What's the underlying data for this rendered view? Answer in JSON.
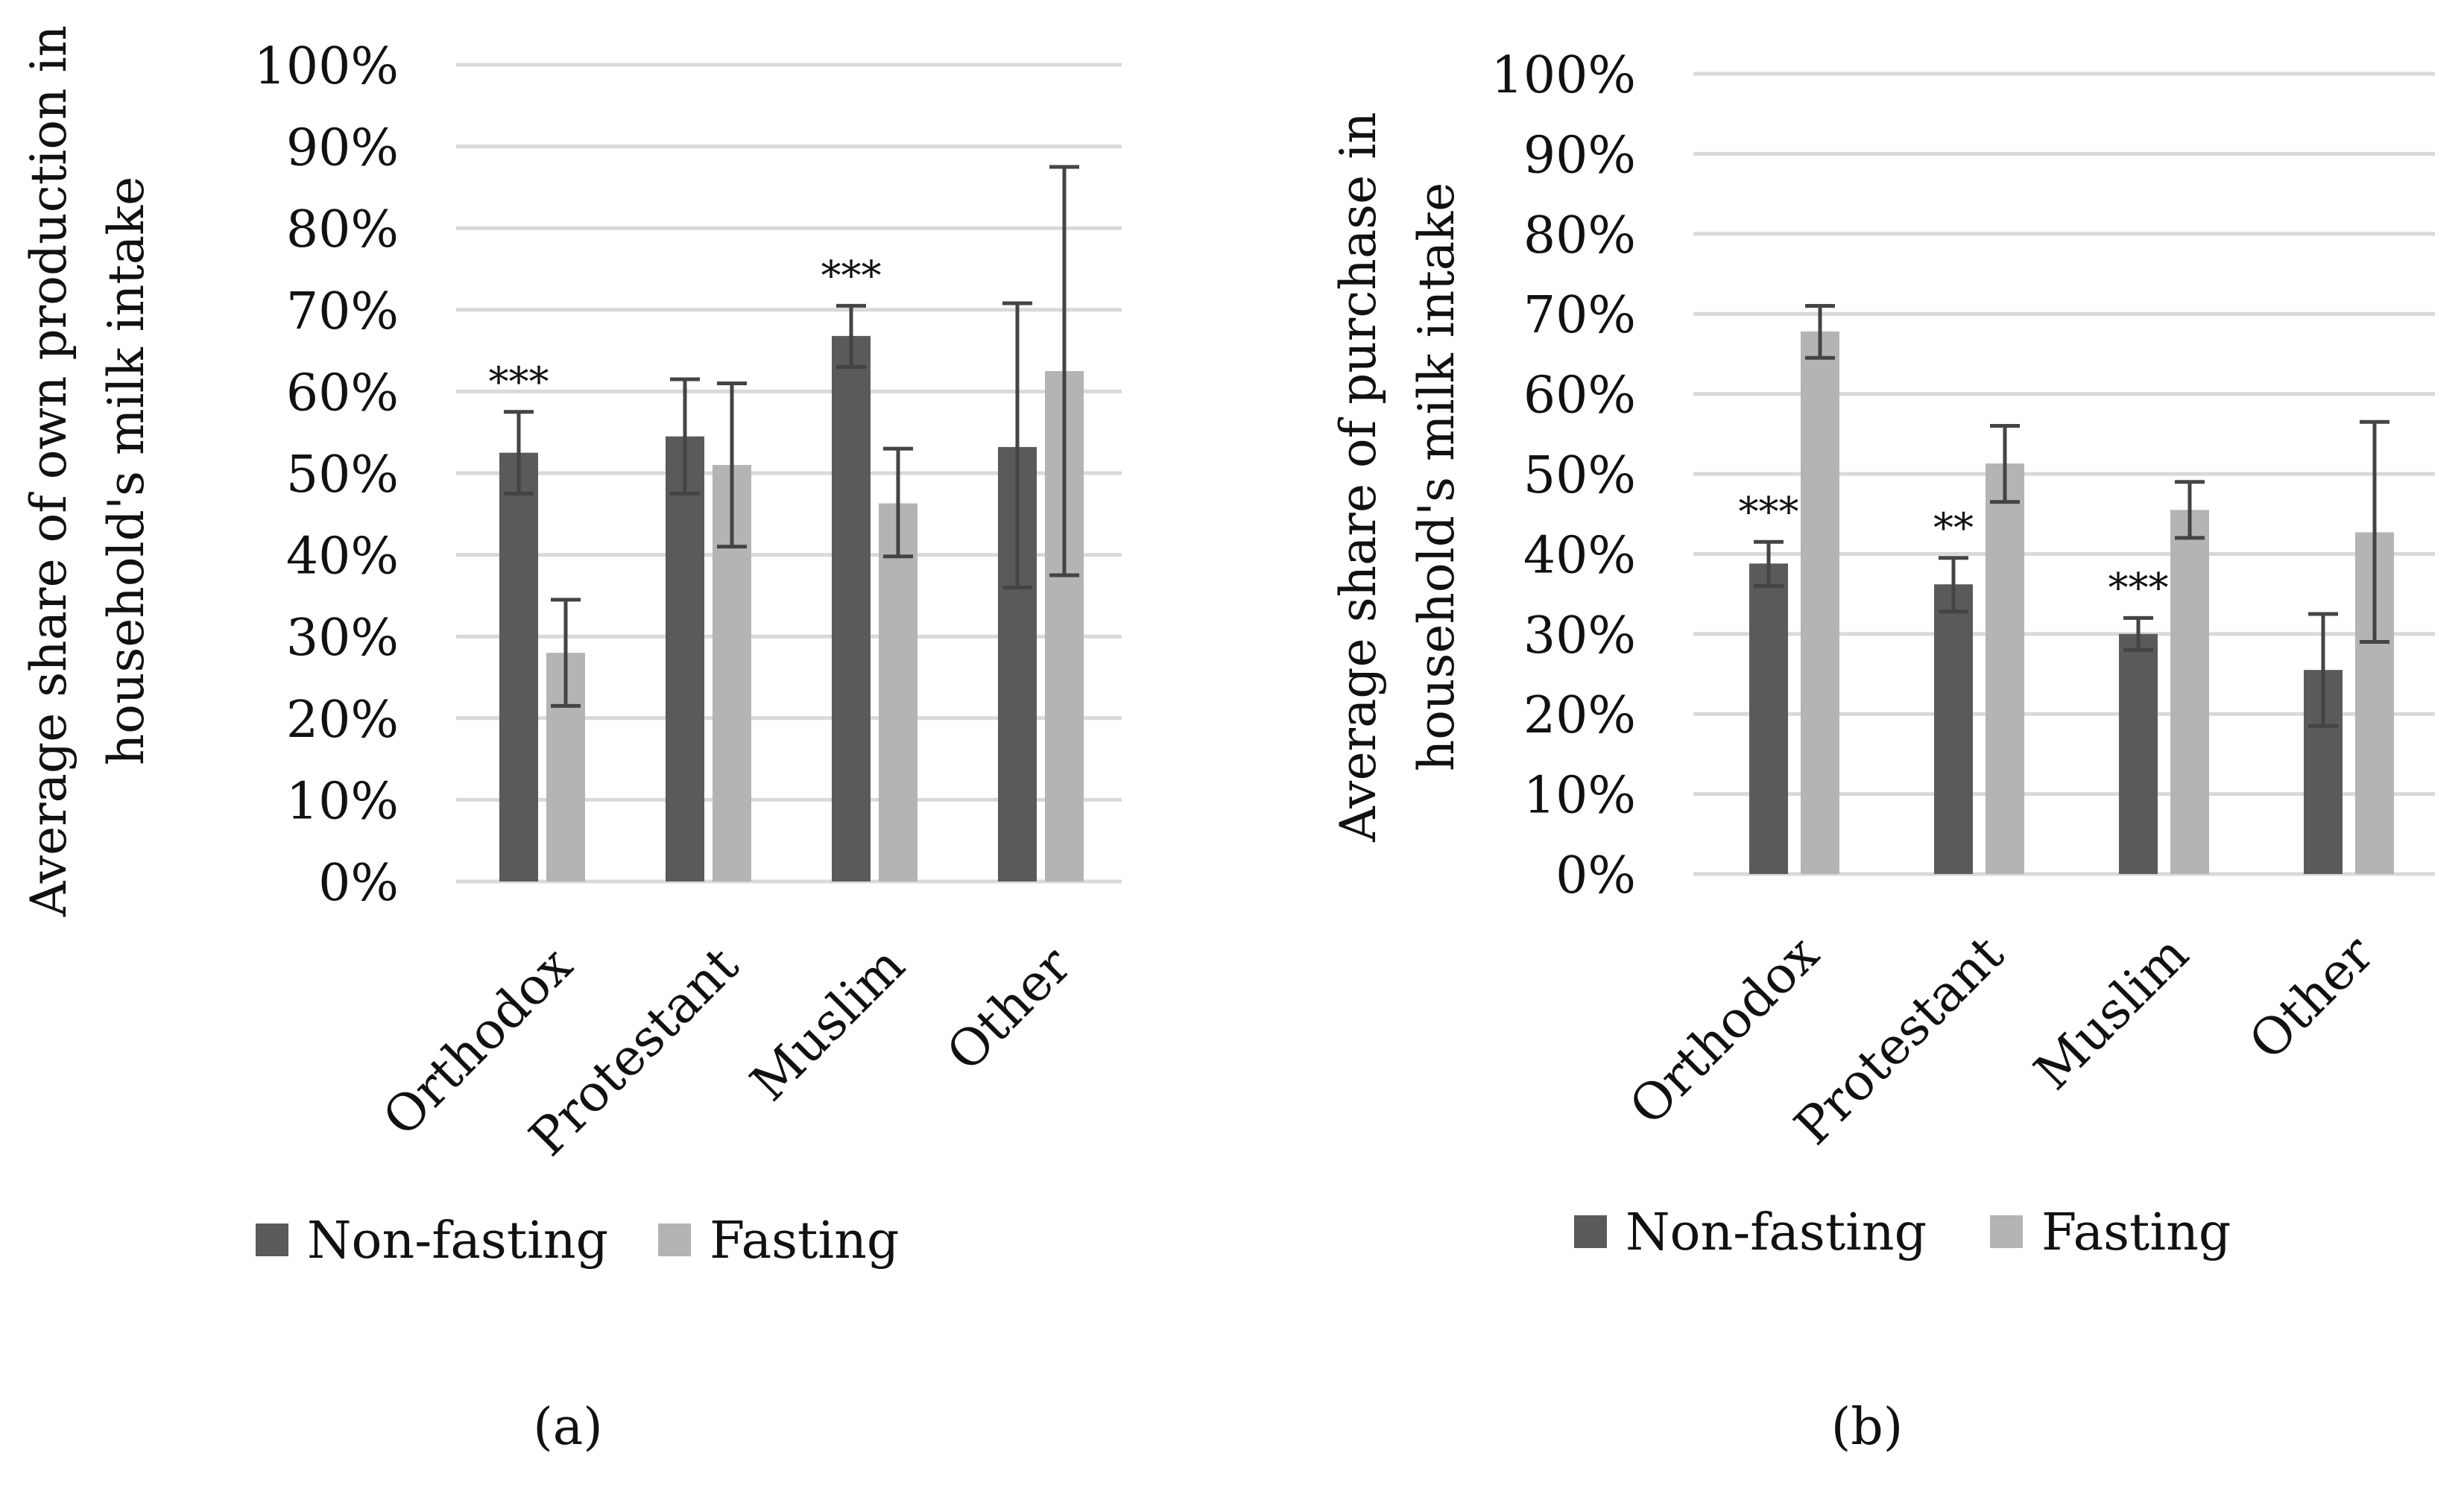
{
  "colors": {
    "non_fasting": "#5a5a5a",
    "fasting": "#b4b4b4",
    "grid": "#d9d9d9",
    "error_bar": "#444444",
    "text": "#111111"
  },
  "chart_data": [
    {
      "type": "bar",
      "panel_label": "(a)",
      "ylabel_lines": [
        "Average share of own production in",
        "household's milk intake"
      ],
      "categories": [
        "Orthodox",
        "Protestant",
        "Muslim",
        "Other"
      ],
      "y_ticks": [
        "0%",
        "10%",
        "20%",
        "30%",
        "40%",
        "50%",
        "60%",
        "70%",
        "80%",
        "90%",
        "100%"
      ],
      "ylim": [
        0,
        100
      ],
      "grid": true,
      "series": [
        {
          "name": "Non-fasting",
          "values": [
            52.5,
            54.5,
            66.8,
            53.2
          ],
          "err_low": [
            47.5,
            47.5,
            63.0,
            36.0
          ],
          "err_high": [
            57.5,
            61.5,
            70.5,
            70.8
          ]
        },
        {
          "name": "Fasting",
          "values": [
            28.0,
            51.0,
            46.3,
            62.5
          ],
          "err_low": [
            21.5,
            41.0,
            39.8,
            37.5
          ],
          "err_high": [
            34.5,
            61.0,
            53.0,
            87.5
          ]
        }
      ],
      "significance": [
        "***",
        "",
        "***",
        ""
      ],
      "legend": [
        "Non-fasting",
        "Fasting"
      ],
      "legend_position": "bottom"
    },
    {
      "type": "bar",
      "panel_label": "(b)",
      "ylabel_lines": [
        "Average share of purchase in",
        "household's milk intake"
      ],
      "categories": [
        "Orthodox",
        "Protestant",
        "Muslim",
        "Other"
      ],
      "y_ticks": [
        "0%",
        "10%",
        "20%",
        "30%",
        "40%",
        "50%",
        "60%",
        "70%",
        "80%",
        "90%",
        "100%"
      ],
      "ylim": [
        0,
        100
      ],
      "grid": true,
      "series": [
        {
          "name": "Non-fasting",
          "values": [
            38.8,
            36.2,
            30.0,
            25.5
          ],
          "err_low": [
            36.0,
            32.8,
            28.0,
            18.5
          ],
          "err_high": [
            41.5,
            39.5,
            32.0,
            32.5
          ]
        },
        {
          "name": "Fasting",
          "values": [
            67.8,
            51.3,
            45.5,
            42.7
          ],
          "err_low": [
            64.5,
            46.5,
            42.0,
            29.0
          ],
          "err_high": [
            71.0,
            56.0,
            49.0,
            56.5
          ]
        }
      ],
      "significance": [
        "***",
        "**",
        "***",
        ""
      ],
      "legend": [
        "Non-fasting",
        "Fasting"
      ],
      "legend_position": "bottom"
    }
  ]
}
